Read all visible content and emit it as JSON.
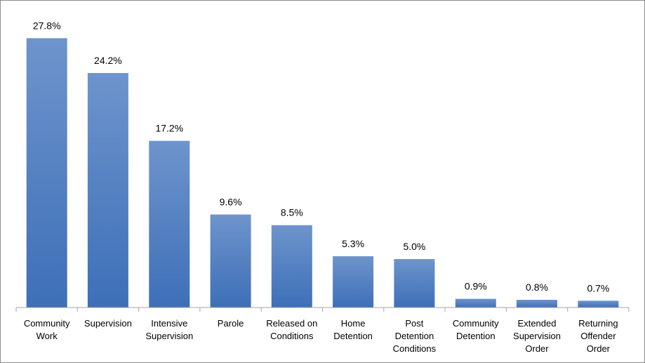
{
  "chart_data": {
    "type": "bar",
    "categories": [
      "Community Work",
      "Supervision",
      "Intensive Supervision",
      "Parole",
      "Released on Conditions",
      "Home Detention",
      "Post Detention Conditions",
      "Community Detention",
      "Extended Supervision Order",
      "Returning Offender Order"
    ],
    "category_label_lines": [
      [
        "Community",
        "Work"
      ],
      [
        "Supervision"
      ],
      [
        "Intensive",
        "Supervision"
      ],
      [
        "Parole"
      ],
      [
        "Released on",
        "Conditions"
      ],
      [
        "Home",
        "Detention"
      ],
      [
        "Post",
        "Detention",
        "Conditions"
      ],
      [
        "Community",
        "Detention"
      ],
      [
        "Extended",
        "Supervision",
        "Order"
      ],
      [
        "Returning",
        "Offender",
        "Order"
      ]
    ],
    "values": [
      27.8,
      24.2,
      17.2,
      9.6,
      8.5,
      5.3,
      5.0,
      0.9,
      0.8,
      0.7
    ],
    "data_labels": [
      "27.8%",
      "24.2%",
      "17.2%",
      "9.6%",
      "8.5%",
      "5.3%",
      "5.0%",
      "0.9%",
      "0.8%",
      "0.7%"
    ],
    "value_unit": "%",
    "title": "",
    "xlabel": "",
    "ylabel": "",
    "ylim": [
      0,
      30
    ],
    "grid": false,
    "legend": "none",
    "colors": {
      "bar_top": "#6E94CC",
      "bar_bottom": "#3D6FB8",
      "axis": "#A6A6A6",
      "frame": "#8C8C8C"
    }
  }
}
